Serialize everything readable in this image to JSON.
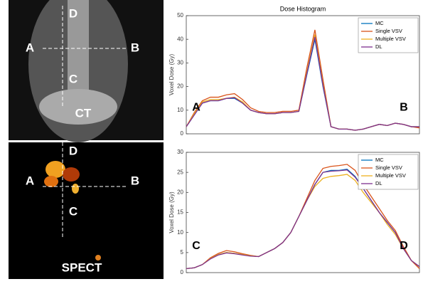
{
  "images": [
    {
      "labels": [
        "D",
        "A",
        "B",
        "C",
        "CT"
      ]
    },
    {
      "labels": [
        "D",
        "A",
        "B",
        "C",
        "SPECT"
      ]
    }
  ],
  "chart_data": [
    {
      "type": "line",
      "title": "Dose Histogram",
      "y_label": "Voxel Dose (Gy)",
      "ylim": [
        0,
        50
      ],
      "yticks": [
        0,
        10,
        20,
        30,
        40,
        50
      ],
      "annotations": [
        "A",
        "B"
      ],
      "legend": "top-right",
      "series": [
        {
          "name": "MC",
          "color": "#0072bd",
          "values": [
            3,
            8,
            13,
            14,
            14,
            15,
            15,
            13,
            10,
            9,
            8.5,
            8.5,
            9,
            9,
            9.5,
            25,
            40,
            20,
            3,
            2,
            2,
            1.5,
            2,
            3,
            4,
            3.5,
            4.5,
            4,
            3,
            3
          ]
        },
        {
          "name": "Single VSV",
          "color": "#d95319",
          "values": [
            3,
            9,
            14,
            15.5,
            15.5,
            16.5,
            17,
            14.5,
            11,
            9.5,
            9,
            9,
            9.5,
            9.5,
            10,
            28,
            44,
            23,
            3,
            2,
            2,
            1.5,
            2,
            3,
            4,
            3.5,
            4.5,
            4,
            3,
            2.5
          ]
        },
        {
          "name": "Multiple VSV",
          "color": "#edb120",
          "values": [
            3,
            8.5,
            13.5,
            14.5,
            14.5,
            15,
            15.5,
            13.5,
            10,
            9,
            8.5,
            8.5,
            9,
            9,
            9.5,
            26,
            42,
            21,
            3,
            2,
            2,
            1.5,
            2,
            3,
            4,
            3.5,
            4.5,
            4,
            3,
            3
          ]
        },
        {
          "name": "DL",
          "color": "#7e2f8e",
          "values": [
            3,
            8,
            13,
            14,
            14,
            15,
            15.3,
            13,
            10,
            9,
            8.5,
            8.5,
            9,
            9,
            9.5,
            25.5,
            41,
            20.5,
            3,
            2,
            2,
            1.5,
            2,
            3,
            4,
            3.5,
            4.5,
            4,
            3,
            3
          ]
        }
      ]
    },
    {
      "type": "line",
      "y_label": "Voxel Dose (Gy)",
      "ylim": [
        0,
        30
      ],
      "yticks": [
        0,
        5,
        10,
        15,
        20,
        25,
        30
      ],
      "annotations": [
        "C",
        "D"
      ],
      "legend": "top-right",
      "series": [
        {
          "name": "MC",
          "color": "#0072bd",
          "values": [
            1,
            1.2,
            2,
            3.5,
            4.5,
            5,
            4.8,
            4.5,
            4.2,
            4,
            5,
            6,
            7.5,
            10,
            14,
            18,
            22,
            25,
            25.5,
            25.5,
            25.8,
            24,
            21,
            18,
            15,
            12.5,
            10,
            6,
            3,
            1.5
          ]
        },
        {
          "name": "Single VSV",
          "color": "#d95319",
          "values": [
            1,
            1.2,
            2,
            3.7,
            4.8,
            5.5,
            5.2,
            4.7,
            4.3,
            4,
            5,
            6,
            7.5,
            10,
            14,
            18.5,
            23,
            26,
            26.5,
            26.7,
            27,
            25.5,
            22,
            19,
            16,
            13,
            10.5,
            6.5,
            3,
            1
          ]
        },
        {
          "name": "Multiple VSV",
          "color": "#edb120",
          "values": [
            1,
            1.2,
            2,
            3.5,
            4.5,
            5,
            4.8,
            4.5,
            4.2,
            4,
            5,
            6,
            7.5,
            10,
            14,
            18,
            21.5,
            23.5,
            24,
            24.2,
            24.5,
            23,
            20,
            17.5,
            15,
            12,
            9.5,
            6,
            3,
            1.5
          ]
        },
        {
          "name": "DL",
          "color": "#7e2f8e",
          "values": [
            1,
            1.2,
            2,
            3.4,
            4.4,
            4.9,
            4.7,
            4.4,
            4.1,
            4,
            5,
            6,
            7.5,
            10,
            14,
            18,
            22,
            25,
            25.3,
            25.4,
            25.6,
            23.8,
            21,
            18,
            15,
            12.5,
            10,
            6,
            3,
            1.5
          ]
        }
      ]
    }
  ]
}
